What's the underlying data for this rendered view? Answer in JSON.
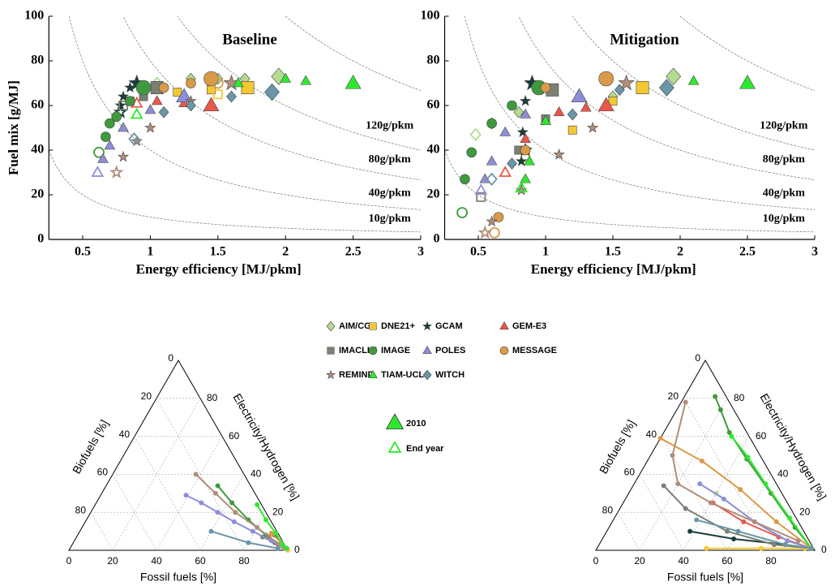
{
  "chart_data": [
    {
      "type": "scatter",
      "title": "Baseline",
      "xlabel": "Energy efficiency [MJ/pkm]",
      "ylabel": "Fuel mix [g/MJ]",
      "xlim": [
        0.25,
        3
      ],
      "ylim": [
        0,
        100
      ],
      "xticks": [
        0.5,
        1,
        1.5,
        2,
        2.5,
        3
      ],
      "yticks": [
        0,
        20,
        40,
        60,
        80,
        100
      ],
      "isolines": [
        {
          "level": 10,
          "label": "10g/pkm"
        },
        {
          "level": 40,
          "label": "40g/pkm"
        },
        {
          "level": 80,
          "label": "80g/pkm"
        },
        {
          "level": 120,
          "label": "120g/pkm"
        },
        {
          "level": 200
        }
      ],
      "marker_legend": {
        "filled": "2010",
        "open": "End year"
      },
      "series": [
        {
          "name": "AIM/CGE",
          "color": "#b5db8f",
          "marker": "diamond",
          "x": [
            1.95,
            1.7,
            1.5,
            1.3,
            1.05
          ],
          "values": [
            73,
            72,
            72,
            72,
            70
          ]
        },
        {
          "name": "DNE21+",
          "color": "#f3c932",
          "marker": "square",
          "x": [
            1.72,
            1.45,
            1.2,
            1.5
          ],
          "values": [
            68,
            67,
            66,
            65
          ]
        },
        {
          "name": "GCAM",
          "color": "#1a3c3a",
          "marker": "star",
          "x": [
            0.9,
            0.85,
            0.8,
            0.78,
            0.78
          ],
          "values": [
            70,
            68,
            64,
            60,
            57
          ]
        },
        {
          "name": "GEM-E3",
          "color": "#e8584a",
          "marker": "triangle",
          "x": [
            1.45,
            1.25,
            1.05,
            0.9
          ],
          "values": [
            60,
            61,
            62,
            61
          ]
        },
        {
          "name": "IMACLIM",
          "color": "#7a8075",
          "marker": "square",
          "x": [
            1.05,
            0.95,
            0.85,
            0.8
          ],
          "values": [
            68,
            64,
            62,
            60
          ]
        },
        {
          "name": "IMAGE",
          "color": "#3f9a3f",
          "marker": "circle",
          "x": [
            0.95,
            0.85,
            0.75,
            0.7,
            0.67,
            0.62
          ],
          "values": [
            68,
            62,
            55,
            52,
            46,
            39
          ]
        },
        {
          "name": "POLES",
          "color": "#8e8ed8",
          "marker": "triangle",
          "x": [
            1.25,
            1.0,
            0.8,
            0.7,
            0.65,
            0.61
          ],
          "values": [
            64,
            58,
            50,
            42,
            36,
            30
          ]
        },
        {
          "name": "MESSAGE",
          "color": "#d99a4a",
          "marker": "circle",
          "x": [
            1.45,
            1.3,
            1.1,
            1.5
          ],
          "values": [
            72,
            70,
            68,
            70
          ]
        },
        {
          "name": "REMIND",
          "color": "#b08d7c",
          "marker": "star",
          "x": [
            1.6,
            1.3,
            1.0,
            0.9,
            0.8,
            0.75
          ],
          "values": [
            70,
            62,
            50,
            44,
            37,
            30
          ]
        },
        {
          "name": "TIAM-UCL",
          "color": "#2ee82e",
          "marker": "triangle",
          "x": [
            2.5,
            2.15,
            2.0,
            1.65,
            0.9
          ],
          "values": [
            70,
            71,
            72,
            70,
            56
          ]
        },
        {
          "name": "WITCH",
          "color": "#6a96a8",
          "marker": "diamond",
          "x": [
            1.9,
            1.6,
            1.3,
            1.1,
            0.88
          ],
          "values": [
            66,
            64,
            60,
            57,
            45
          ]
        }
      ]
    },
    {
      "type": "scatter",
      "title": "Mitigation",
      "xlabel": "Energy efficiency [MJ/pkm]",
      "xlim": [
        0.25,
        3
      ],
      "ylim": [
        0,
        100
      ],
      "xticks": [
        0.5,
        1,
        1.5,
        2,
        2.5,
        3
      ],
      "yticks": [
        0,
        20,
        40,
        60,
        80,
        100
      ],
      "isolines": [
        {
          "level": 10,
          "label": "10g/pkm"
        },
        {
          "level": 40,
          "label": "40g/pkm"
        },
        {
          "level": 80,
          "label": "80g/pkm"
        },
        {
          "level": 120,
          "label": "120g/pkm"
        },
        {
          "level": 200
        }
      ],
      "series": [
        {
          "color": "#b5db8f",
          "marker": "diamond",
          "x": [
            1.95,
            1.5,
            0.8,
            0.6,
            0.48
          ],
          "values": [
            73,
            64,
            57,
            52,
            47
          ]
        },
        {
          "color": "#f3c932",
          "marker": "square",
          "x": [
            1.72,
            1.5,
            1.2,
            0.85
          ],
          "values": [
            68,
            62,
            49,
            37
          ]
        },
        {
          "color": "#1a3c3a",
          "marker": "star",
          "x": [
            0.9,
            0.85,
            0.83,
            0.82,
            0.85
          ],
          "values": [
            70,
            62,
            48,
            35,
            40
          ]
        },
        {
          "color": "#e8584a",
          "marker": "triangle",
          "x": [
            1.45,
            1.3,
            1.1,
            0.85,
            0.7
          ],
          "values": [
            60,
            59,
            57,
            45,
            30
          ]
        },
        {
          "color": "#7a8075",
          "marker": "square",
          "x": [
            1.05,
            1.0,
            0.8,
            0.52
          ],
          "values": [
            67,
            54,
            40,
            19
          ]
        },
        {
          "color": "#3f9a3f",
          "marker": "circle",
          "x": [
            0.95,
            0.75,
            0.6,
            0.45,
            0.4,
            0.38
          ],
          "values": [
            68,
            60,
            52,
            39,
            27,
            12
          ]
        },
        {
          "color": "#8e8ed8",
          "marker": "triangle",
          "x": [
            1.25,
            0.85,
            0.7,
            0.6,
            0.55,
            0.52
          ],
          "values": [
            64,
            56,
            48,
            35,
            27,
            22
          ]
        },
        {
          "color": "#d99a4a",
          "marker": "circle",
          "x": [
            1.45,
            1.0,
            0.85,
            0.65,
            0.62
          ],
          "values": [
            72,
            68,
            40,
            10,
            3
          ]
        },
        {
          "color": "#b08d7c",
          "marker": "star",
          "x": [
            1.6,
            1.35,
            1.1,
            0.82,
            0.6,
            0.55
          ],
          "values": [
            70,
            50,
            38,
            22,
            8,
            3
          ]
        },
        {
          "color": "#2ee82e",
          "marker": "triangle",
          "x": [
            2.5,
            2.1,
            1.0,
            0.88,
            0.85,
            0.82
          ],
          "values": [
            70,
            71,
            53,
            35,
            27,
            23
          ]
        },
        {
          "color": "#6a96a8",
          "marker": "diamond",
          "x": [
            1.9,
            1.55,
            1.2,
            0.75,
            0.6
          ],
          "values": [
            68,
            67,
            56,
            34,
            27
          ]
        }
      ]
    },
    {
      "type": "ternary",
      "axis_labels": {
        "fossil": "Fossil fuels [%]",
        "biofuels": "Biofuels [%]",
        "electricity": "Electricity/Hydrogen [%]"
      },
      "ticks": [
        0,
        20,
        40,
        60,
        80
      ],
      "series": [
        {
          "color": "#b5db8f",
          "fossil": [
            92,
            96,
            99
          ],
          "biofuels": [
            4,
            2,
            0
          ],
          "electricity": [
            4,
            2,
            1
          ]
        },
        {
          "color": "#f3c932",
          "fossil": [
            95,
            98,
            100
          ],
          "biofuels": [
            1,
            1,
            0
          ],
          "electricity": [
            4,
            1,
            0
          ]
        },
        {
          "color": "#1a3c3a",
          "fossil": [
            90,
            95,
            99
          ],
          "biofuels": [
            2,
            1,
            0
          ],
          "electricity": [
            8,
            4,
            1
          ]
        },
        {
          "color": "#e8584a",
          "fossil": [
            88,
            94,
            99
          ],
          "biofuels": [
            5,
            3,
            0
          ],
          "electricity": [
            7,
            3,
            1
          ]
        },
        {
          "color": "#7a8075",
          "fossil": [
            85,
            92,
            99
          ],
          "biofuels": [
            8,
            4,
            0
          ],
          "electricity": [
            7,
            4,
            1
          ]
        },
        {
          "color": "#3f9a3f",
          "fossil": [
            51,
            62,
            74,
            86,
            97
          ],
          "biofuels": [
            15,
            13,
            10,
            6,
            1
          ],
          "electricity": [
            34,
            25,
            16,
            8,
            2
          ]
        },
        {
          "color": "#8e8ed8",
          "fossil": [
            39,
            48,
            58,
            68,
            79,
            90,
            98
          ],
          "biofuels": [
            32,
            27,
            22,
            17,
            11,
            5,
            1
          ],
          "electricity": [
            29,
            25,
            20,
            15,
            10,
            5,
            1
          ]
        },
        {
          "color": "#d99a4a",
          "fossil": [
            88,
            95,
            99
          ],
          "biofuels": [
            3,
            1,
            0
          ],
          "electricity": [
            9,
            4,
            1
          ]
        },
        {
          "color": "#b08d7c",
          "fossil": [
            38,
            52,
            66,
            80,
            98
          ],
          "biofuels": [
            22,
            18,
            14,
            8,
            1
          ],
          "electricity": [
            40,
            30,
            20,
            12,
            1
          ]
        },
        {
          "color": "#2ee82e",
          "fossil": [
            74,
            82,
            90,
            96,
            99
          ],
          "biofuels": [
            2,
            2,
            1,
            1,
            0
          ],
          "electricity": [
            24,
            16,
            9,
            3,
            1
          ]
        },
        {
          "color": "#6a96a8",
          "fossil": [
            60,
            80,
            95
          ],
          "biofuels": [
            30,
            16,
            4
          ],
          "electricity": [
            10,
            4,
            1
          ]
        }
      ]
    },
    {
      "type": "ternary",
      "axis_labels": {
        "fossil": "Fossil fuels [%]",
        "biofuels": "Biofuels [%]",
        "electricity": "Electricity/Hydrogen [%]"
      },
      "ticks": [
        0,
        20,
        40,
        60,
        80
      ],
      "series": [
        {
          "color": "#b5db8f",
          "fossil": [
            40,
            65,
            85,
            98
          ],
          "biofuels": [
            30,
            20,
            10,
            1
          ],
          "electricity": [
            30,
            15,
            5,
            1
          ]
        },
        {
          "color": "#f3c932",
          "fossil": [
            50,
            75,
            95
          ],
          "biofuels": [
            49,
            24,
            4
          ],
          "electricity": [
            1,
            1,
            1
          ]
        },
        {
          "color": "#1a3c3a",
          "fossil": [
            38,
            60,
            85,
            98
          ],
          "biofuels": [
            52,
            34,
            12,
            1
          ],
          "electricity": [
            10,
            6,
            3,
            1
          ]
        },
        {
          "color": "#e8584a",
          "fossil": [
            41,
            60,
            80,
            98
          ],
          "biofuels": [
            34,
            25,
            13,
            1
          ],
          "electricity": [
            25,
            15,
            7,
            1
          ]
        },
        {
          "color": "#7a8075",
          "fossil": [
            14,
            30,
            55,
            80,
            98
          ],
          "biofuels": [
            52,
            48,
            35,
            17,
            1
          ],
          "electricity": [
            34,
            22,
            10,
            3,
            1
          ]
        },
        {
          "color": "#3f9a3f",
          "fossil": [
            14,
            20,
            30,
            45,
            65,
            85,
            98
          ],
          "biofuels": [
            5,
            6,
            8,
            7,
            5,
            3,
            1
          ],
          "electricity": [
            81,
            74,
            62,
            48,
            30,
            12,
            1
          ]
        },
        {
          "color": "#8e8ed8",
          "fossil": [
            30,
            45,
            65,
            85,
            98
          ],
          "biofuels": [
            35,
            28,
            20,
            10,
            1
          ],
          "electricity": [
            35,
            27,
            15,
            5,
            1
          ]
        },
        {
          "color": "#d99a4a",
          "fossil": [
            0,
            25,
            50,
            75,
            98
          ],
          "biofuels": [
            41,
            28,
            18,
            10,
            1
          ],
          "electricity": [
            59,
            47,
            32,
            15,
            1
          ]
        },
        {
          "color": "#b08d7c",
          "fossil": [
            2,
            10,
            20,
            40,
            65,
            90
          ],
          "biofuels": [
            20,
            40,
            45,
            35,
            20,
            5
          ],
          "electricity": [
            78,
            50,
            35,
            25,
            15,
            5
          ]
        },
        {
          "color": "#2ee82e",
          "fossil": [
            32,
            45,
            60,
            80,
            98
          ],
          "biofuels": [
            8,
            6,
            5,
            3,
            1
          ],
          "electricity": [
            60,
            49,
            35,
            17,
            1
          ]
        },
        {
          "color": "#6a96a8",
          "fossil": [
            38,
            60,
            85,
            98
          ],
          "biofuels": [
            46,
            30,
            12,
            1
          ],
          "electricity": [
            16,
            10,
            3,
            1
          ]
        }
      ]
    }
  ]
}
